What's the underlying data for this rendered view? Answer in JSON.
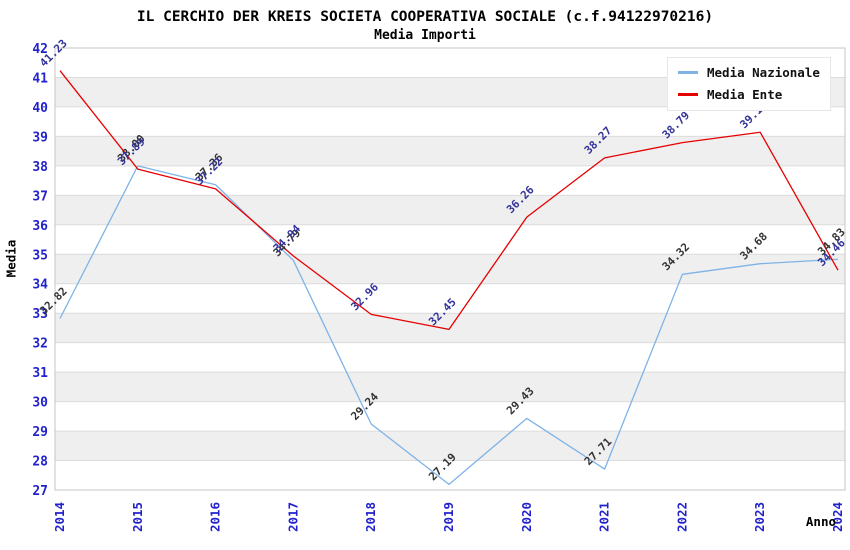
{
  "chart_data": {
    "type": "line",
    "title": "IL CERCHIO DER KREIS SOCIETA COOPERATIVA SOCIALE (c.f.94122970216)",
    "subtitle": "Media Importi",
    "xlabel": "Anno",
    "ylabel": "Media",
    "x": [
      2014,
      2015,
      2016,
      2017,
      2018,
      2019,
      2020,
      2021,
      2022,
      2023,
      2024
    ],
    "ylim": [
      27,
      42
    ],
    "y_tick_step": 1,
    "grid": "horizontal gridlines with alternating gray/white bands",
    "legend_position": "top-right inside plot",
    "series": [
      {
        "name": "Media Nazionale",
        "color": "#7fb3e6",
        "label_color": "#333333",
        "values": [
          32.82,
          38.0,
          37.36,
          34.79,
          29.24,
          27.19,
          29.43,
          27.71,
          34.32,
          34.68,
          34.83
        ]
      },
      {
        "name": "Media Ente",
        "color": "#e60000",
        "label_color": "#333399",
        "values": [
          41.23,
          37.89,
          37.22,
          34.94,
          32.96,
          32.45,
          36.26,
          38.27,
          38.79,
          39.14,
          34.46
        ]
      }
    ],
    "style": {
      "tick_label_color": "#2222cc",
      "band_color": "#efefef",
      "grid_color": "#dcdcdc",
      "border_color": "#c4c4c4",
      "text_color": "#000000",
      "background": "#ffffff"
    }
  }
}
